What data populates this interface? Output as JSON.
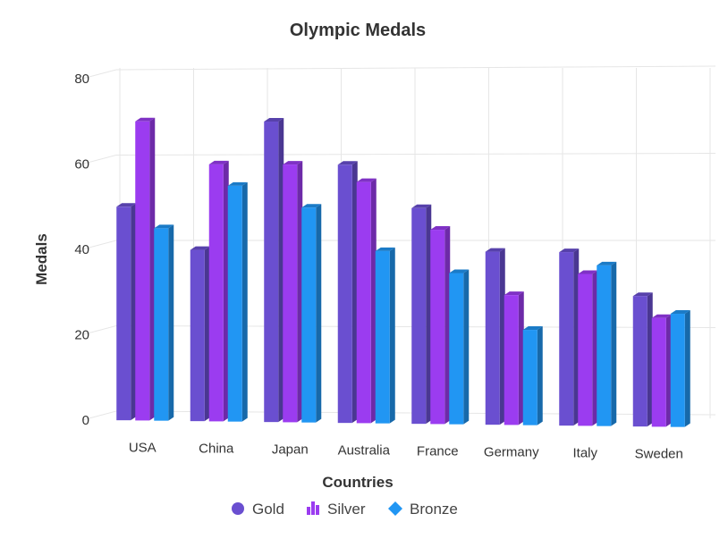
{
  "chart_data": {
    "type": "bar",
    "title": "Olympic Medals",
    "xlabel": "Countries",
    "ylabel": "Medals",
    "ylim": [
      0,
      80
    ],
    "yticks": [
      0,
      20,
      40,
      60,
      80
    ],
    "grid": true,
    "legend_position": "bottom",
    "categories": [
      "USA",
      "China",
      "Japan",
      "Australia",
      "France",
      "Germany",
      "Italy",
      "Sweden"
    ],
    "series": [
      {
        "name": "Gold",
        "color": "#6a4fd0",
        "marker": "circle",
        "values": [
          50,
          40,
          70,
          60,
          50,
          40,
          40,
          30
        ]
      },
      {
        "name": "Silver",
        "color": "#9b3cf0",
        "marker": "bars",
        "values": [
          70,
          60,
          60,
          56,
          45,
          30,
          35,
          25
        ]
      },
      {
        "name": "Bronze",
        "color": "#2196f3",
        "marker": "diamond",
        "values": [
          45,
          55,
          50,
          40,
          35,
          22,
          37,
          26
        ]
      }
    ]
  }
}
